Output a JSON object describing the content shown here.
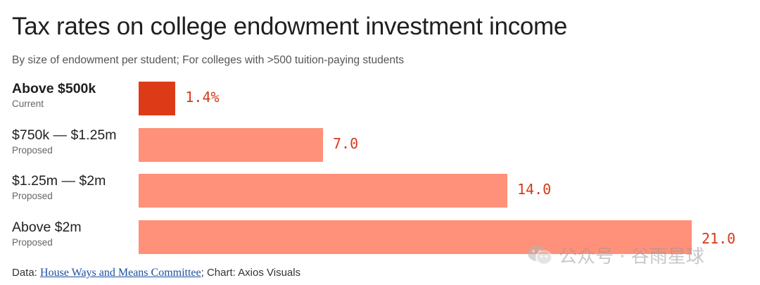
{
  "title": "Tax rates on college endowment investment income",
  "subtitle": "By size of endowment per student; For colleges with >500 tuition-paying students",
  "chart_data": {
    "type": "bar",
    "orientation": "horizontal",
    "categories": [
      "Above $500k",
      "$750k — $1.25m",
      "$1.25m — $2m",
      "Above $2m"
    ],
    "notes": [
      "Current",
      "Proposed",
      "Proposed",
      "Proposed"
    ],
    "values": [
      1.4,
      7.0,
      14.0,
      21.0
    ],
    "value_labels": [
      "1.4%",
      "7.0",
      "14.0",
      "21.0"
    ],
    "xlim": [
      0,
      21
    ],
    "colors": {
      "current": "#dd3b18",
      "proposed": "#ff9079",
      "label": "#d43a19"
    },
    "grid": false
  },
  "footer": {
    "prefix": "Data: ",
    "source_link": "House Ways and Means Committee",
    "suffix": "; Chart: Axios Visuals"
  },
  "watermark": {
    "text": "公众号 · 谷雨星球",
    "icon": "wechat-icon"
  }
}
